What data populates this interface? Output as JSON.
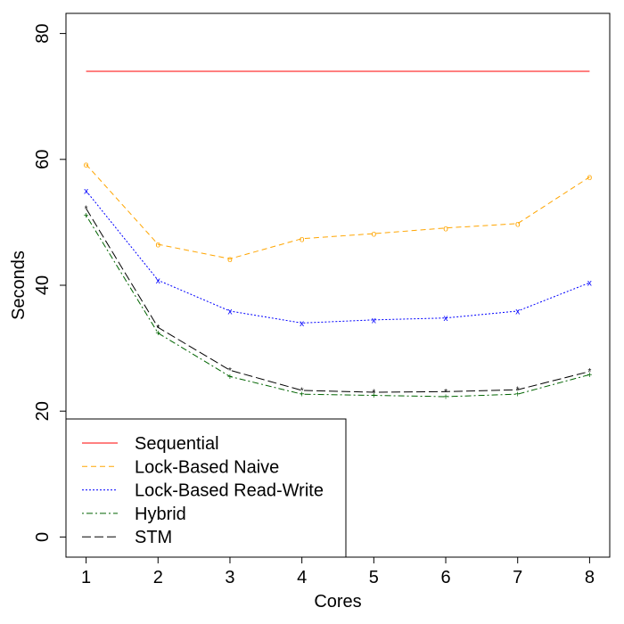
{
  "chart_data": {
    "type": "line",
    "title": "",
    "xlabel": "Cores",
    "ylabel": "Seconds",
    "x": [
      1,
      2,
      3,
      4,
      5,
      6,
      7,
      8
    ],
    "xticks": [
      1,
      2,
      3,
      4,
      5,
      6,
      7,
      8
    ],
    "yticks": [
      0,
      20,
      40,
      60,
      80
    ],
    "xlim": [
      0.72,
      8.28
    ],
    "ylim": [
      -3.2,
      83.2
    ],
    "grid": false,
    "legend_position": "bottom-left",
    "series": [
      {
        "name": "Sequential",
        "color": "#ff0000",
        "dash": "solid",
        "marker": "none",
        "values": [
          74,
          74,
          74,
          74,
          74,
          74,
          74,
          74
        ]
      },
      {
        "name": "Lock-Based Naive",
        "color": "#ffa500",
        "dash": "dashed",
        "marker": "o",
        "values": [
          59.2,
          46.5,
          44.2,
          47.4,
          48.2,
          49.1,
          49.8,
          57.2
        ]
      },
      {
        "name": "Lock-Based Read-Write",
        "color": "#0000ff",
        "dash": "dotted",
        "marker": "x",
        "values": [
          55,
          40.8,
          35.9,
          34.0,
          34.5,
          34.8,
          35.9,
          40.4
        ]
      },
      {
        "name": "Hybrid",
        "color": "#006400",
        "dash": "dotdash",
        "marker": "+",
        "values": [
          51.1,
          32.4,
          25.5,
          22.7,
          22.5,
          22.3,
          22.7,
          25.8
        ]
      },
      {
        "name": "STM",
        "color": "#000000",
        "dash": "longdash",
        "marker": "*",
        "values": [
          52.2,
          33.3,
          26.5,
          23.3,
          23.0,
          23.1,
          23.4,
          26.3
        ]
      }
    ]
  }
}
